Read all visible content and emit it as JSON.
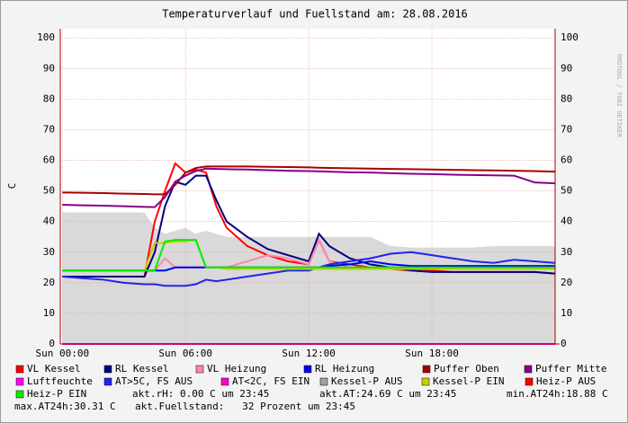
{
  "chart_data": {
    "type": "line",
    "title": "Temperaturverlauf und Fuellstand am: 28.08.2016",
    "y_label": "C",
    "watermark": "RRDTOOL / TOBI OETIKER",
    "x": [
      0,
      1,
      2,
      3,
      4,
      4.5,
      5,
      5.5,
      6,
      6.5,
      7,
      7.5,
      8,
      9,
      10,
      11,
      12,
      12.5,
      13,
      14,
      15,
      16,
      17,
      18,
      19,
      20,
      21,
      22,
      23,
      24
    ],
    "xlim": [
      -0.1,
      24
    ],
    "xticks": [
      {
        "value": 0,
        "label": "Sun 00:00"
      },
      {
        "value": 6,
        "label": "Sun 06:00"
      },
      {
        "value": 12,
        "label": "Sun 12:00"
      },
      {
        "value": 18,
        "label": "Sun 18:00"
      }
    ],
    "ylim": [
      0,
      103
    ],
    "yticks": [
      0,
      10,
      20,
      30,
      40,
      50,
      60,
      70,
      80,
      90,
      100
    ],
    "grid": true,
    "series": [
      {
        "name": "VL Kessel",
        "color": "#ff0000",
        "values": [
          22,
          22,
          22,
          22,
          22,
          40,
          50,
          59,
          56,
          57,
          56,
          45,
          38,
          32,
          29,
          27,
          26,
          34,
          27,
          26,
          25,
          24.5,
          24,
          24,
          23.5,
          23.5,
          23.5,
          23.5,
          23.5,
          23
        ]
      },
      {
        "name": "RL Kessel",
        "color": "#000080",
        "values": [
          22,
          22,
          22,
          22,
          22,
          30,
          45,
          53,
          52,
          55,
          55,
          47,
          40,
          35,
          31,
          29,
          27,
          36,
          32,
          28,
          26,
          25,
          24,
          23.5,
          23.5,
          23.5,
          23.5,
          23.5,
          23.5,
          23
        ]
      },
      {
        "name": "VL Heizung",
        "color": "#ff88aa",
        "values": [
          24,
          24,
          24,
          24,
          24,
          24,
          28,
          25,
          25,
          25,
          25,
          25,
          25,
          27,
          29,
          28,
          26,
          34,
          27,
          25,
          25,
          25,
          25,
          25,
          25,
          25,
          25,
          25,
          25,
          25
        ]
      },
      {
        "name": "RL Heizung",
        "color": "#0000ff",
        "values": [
          24,
          24,
          24,
          24,
          24,
          24,
          24,
          25,
          25,
          25,
          25,
          25,
          25,
          25,
          25,
          25,
          25,
          25,
          25.5,
          26,
          27,
          26,
          25.5,
          25.5,
          25.5,
          25.5,
          25.5,
          25.5,
          25.5,
          25.5
        ]
      },
      {
        "name": "Puffer Oben",
        "color": "#aa0000",
        "values": [
          49.5,
          49.4,
          49.3,
          49.1,
          49,
          48.9,
          48.9,
          52,
          56,
          57.5,
          58,
          58,
          58,
          58,
          57.9,
          57.8,
          57.7,
          57.6,
          57.5,
          57.4,
          57.3,
          57.2,
          57.1,
          57,
          56.9,
          56.8,
          56.7,
          56.6,
          56.5,
          56.3
        ]
      },
      {
        "name": "Puffer Mitte",
        "color": "#880088",
        "values": [
          45.5,
          45.3,
          45.2,
          45,
          44.8,
          44.7,
          48,
          53,
          55,
          56.5,
          57.3,
          57.2,
          57.1,
          57,
          56.8,
          56.6,
          56.5,
          56.4,
          56.3,
          56.1,
          56,
          55.8,
          55.6,
          55.5,
          55.3,
          55.2,
          55.1,
          55,
          52.8,
          52.5
        ]
      },
      {
        "name": "Luftfeuchte",
        "color": "#ff00ff",
        "values": [
          0,
          0,
          0,
          0,
          0,
          0,
          0,
          0,
          0,
          0,
          0,
          0,
          0,
          0,
          0,
          0,
          0,
          0,
          0,
          0,
          0,
          0,
          0,
          0,
          0,
          0,
          0,
          0,
          0,
          0
        ]
      },
      {
        "name": "AT>5C, FS AUS",
        "color": "#2222ee",
        "values": [
          22,
          21.5,
          21,
          20,
          19.5,
          19.5,
          19,
          19,
          19,
          19.5,
          21,
          20.5,
          21,
          22,
          23,
          24,
          24,
          25,
          26,
          27,
          28,
          29.5,
          30,
          29,
          28,
          27,
          26.5,
          27.5,
          27,
          26.5
        ]
      },
      {
        "name": "AT<2C, FS EIN",
        "color": "#ff00cc",
        "values": [
          null,
          null,
          null,
          null,
          null,
          null,
          null,
          null,
          null,
          null,
          null,
          null,
          null,
          null,
          null,
          null,
          null,
          null,
          null,
          null,
          null,
          null,
          null,
          null,
          null,
          null,
          null,
          null,
          null,
          null
        ]
      },
      {
        "name": "Kessel-P AUS",
        "color": "#a0a0a0",
        "style": "area",
        "values": [
          43,
          43,
          43,
          43,
          43,
          38,
          36,
          37,
          38,
          36,
          37,
          36,
          35,
          35,
          35,
          35,
          35,
          35,
          35,
          35,
          35,
          32,
          31.5,
          31.5,
          31.5,
          31.5,
          32,
          32,
          32,
          32
        ]
      },
      {
        "name": "Kessel-P EIN",
        "color": "#cccc00",
        "values": [
          24,
          24,
          24,
          24,
          24,
          33,
          33,
          33.5,
          33.5,
          34,
          25,
          25,
          24.5,
          24.5,
          24.5,
          24.5,
          24.5,
          24.5,
          24.5,
          24.5,
          24.5,
          24.5,
          24.5,
          24.5,
          24.5,
          24.5,
          24.5,
          24.5,
          24.5,
          24.5
        ]
      },
      {
        "name": "Heiz-P AUS",
        "color": "#ff0000",
        "values": [
          null,
          null,
          null,
          null,
          null,
          null,
          null,
          null,
          null,
          null,
          null,
          null,
          null,
          null,
          null,
          null,
          null,
          null,
          null,
          null,
          null,
          null,
          null,
          null,
          null,
          null,
          null,
          null,
          null,
          null
        ]
      },
      {
        "name": "Heiz-P EIN",
        "color": "#00ee00",
        "values": [
          24,
          24,
          24,
          24,
          24,
          24,
          33.5,
          34,
          34,
          34,
          25,
          25,
          25,
          25,
          25,
          25,
          25,
          25,
          25,
          25,
          25,
          25,
          25,
          25,
          25,
          25,
          25,
          25,
          25,
          25
        ]
      }
    ],
    "annotations": [
      "akt.rH: 0.00 C um 23:45",
      "akt.AT:24.69 C um 23:45",
      "min.AT24h:18.88 C",
      "max.AT24h:30.31 C",
      "akt.Fuellstand:   32 Prozent um 23:45"
    ]
  }
}
